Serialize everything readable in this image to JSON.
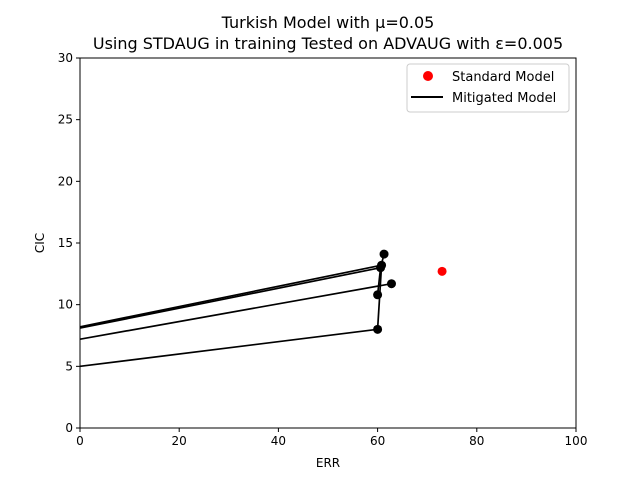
{
  "chart_data": {
    "type": "scatter",
    "title_line1": "Turkish Model with μ=0.05",
    "title_line2": "Using STDAUG in training Tested on ADVAUG with ε=0.005",
    "xlabel": "ERR",
    "ylabel": "CIC",
    "xlim": [
      0,
      100
    ],
    "ylim": [
      0,
      30
    ],
    "xticks": [
      0,
      20,
      40,
      60,
      80,
      100
    ],
    "yticks": [
      0,
      5,
      10,
      15,
      20,
      25,
      30
    ],
    "grid": false,
    "legend_position": "top-right",
    "series": [
      {
        "name": "Standard Model",
        "kind": "points",
        "color": "#ff0000",
        "points": [
          [
            73.0,
            12.7
          ]
        ]
      },
      {
        "name": "Mitigated Model",
        "kind": "segments",
        "color": "#000000",
        "segments": [
          [
            [
              0.0,
              5.0
            ],
            [
              60.0,
              8.0
            ]
          ],
          [
            [
              60.0,
              8.0
            ],
            [
              60.8,
              13.2
            ]
          ],
          [
            [
              0.0,
              8.2
            ],
            [
              60.8,
              13.2
            ]
          ],
          [
            [
              0.0,
              8.1
            ],
            [
              60.6,
              13.0
            ]
          ],
          [
            [
              60.6,
              13.0
            ],
            [
              61.3,
              14.1
            ]
          ],
          [
            [
              0.0,
              7.2
            ],
            [
              62.8,
              11.7
            ]
          ],
          [
            [
              60.0,
              10.8
            ],
            [
              60.6,
              13.0
            ]
          ]
        ],
        "points": [
          [
            60.0,
            8.0
          ],
          [
            60.8,
            13.2
          ],
          [
            60.6,
            13.0
          ],
          [
            61.3,
            14.1
          ],
          [
            62.8,
            11.7
          ],
          [
            60.0,
            10.8
          ]
        ]
      }
    ]
  }
}
